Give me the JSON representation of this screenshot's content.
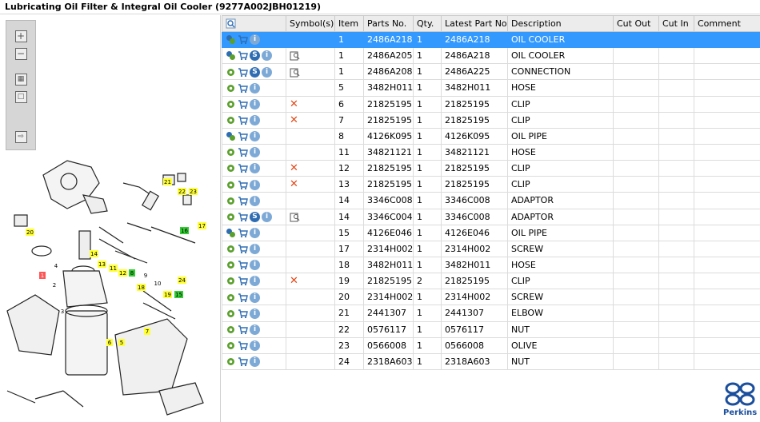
{
  "title": "Lubricating Oil Filter & Integral Oil Cooler (9277A002JBH01219)",
  "columns": [
    "Symbol(s)",
    "Item",
    "Parts No.",
    "Qty.",
    "Latest Part No.",
    "Description",
    "Cut Out",
    "Cut In",
    "Comment"
  ],
  "rows": [
    {
      "item": "1",
      "part": "2486A218",
      "qty": "1",
      "latest": "2486A218",
      "desc": "OIL COOLER",
      "selected": true,
      "s": false,
      "catalog": false,
      "cross": false,
      "multi": true
    },
    {
      "item": "1",
      "part": "2486A205",
      "qty": "1",
      "latest": "2486A218",
      "desc": "OIL COOLER",
      "s": true,
      "catalog": true,
      "cross": false,
      "multi": true
    },
    {
      "item": "1",
      "part": "2486A208",
      "qty": "1",
      "latest": "2486A225",
      "desc": "CONNECTION",
      "s": true,
      "catalog": true,
      "cross": false,
      "multi": false
    },
    {
      "item": "5",
      "part": "3482H011",
      "qty": "1",
      "latest": "3482H011",
      "desc": "HOSE",
      "s": false,
      "catalog": false,
      "cross": false,
      "multi": false
    },
    {
      "item": "6",
      "part": "21825195",
      "qty": "1",
      "latest": "21825195",
      "desc": "CLIP",
      "s": false,
      "catalog": false,
      "cross": true,
      "multi": false
    },
    {
      "item": "7",
      "part": "21825195",
      "qty": "1",
      "latest": "21825195",
      "desc": "CLIP",
      "s": false,
      "catalog": false,
      "cross": true,
      "multi": false
    },
    {
      "item": "8",
      "part": "4126K095",
      "qty": "1",
      "latest": "4126K095",
      "desc": "OIL PIPE",
      "s": false,
      "catalog": false,
      "cross": false,
      "multi": true
    },
    {
      "item": "11",
      "part": "34821121",
      "qty": "1",
      "latest": "34821121",
      "desc": "HOSE",
      "s": false,
      "catalog": false,
      "cross": false,
      "multi": false
    },
    {
      "item": "12",
      "part": "21825195",
      "qty": "1",
      "latest": "21825195",
      "desc": "CLIP",
      "s": false,
      "catalog": false,
      "cross": true,
      "multi": false
    },
    {
      "item": "13",
      "part": "21825195",
      "qty": "1",
      "latest": "21825195",
      "desc": "CLIP",
      "s": false,
      "catalog": false,
      "cross": true,
      "multi": false
    },
    {
      "item": "14",
      "part": "3346C008",
      "qty": "1",
      "latest": "3346C008",
      "desc": "ADAPTOR",
      "s": false,
      "catalog": false,
      "cross": false,
      "multi": false
    },
    {
      "item": "14",
      "part": "3346C004",
      "qty": "1",
      "latest": "3346C008",
      "desc": "ADAPTOR",
      "s": true,
      "catalog": true,
      "cross": false,
      "multi": false
    },
    {
      "item": "15",
      "part": "4126E046",
      "qty": "1",
      "latest": "4126E046",
      "desc": "OIL PIPE",
      "s": false,
      "catalog": false,
      "cross": false,
      "multi": true
    },
    {
      "item": "17",
      "part": "2314H002",
      "qty": "1",
      "latest": "2314H002",
      "desc": "SCREW",
      "s": false,
      "catalog": false,
      "cross": false,
      "multi": false
    },
    {
      "item": "18",
      "part": "3482H011",
      "qty": "1",
      "latest": "3482H011",
      "desc": "HOSE",
      "s": false,
      "catalog": false,
      "cross": false,
      "multi": false
    },
    {
      "item": "19",
      "part": "21825195",
      "qty": "2",
      "latest": "21825195",
      "desc": "CLIP",
      "s": false,
      "catalog": false,
      "cross": true,
      "multi": false
    },
    {
      "item": "20",
      "part": "2314H002",
      "qty": "1",
      "latest": "2314H002",
      "desc": "SCREW",
      "s": false,
      "catalog": false,
      "cross": false,
      "multi": false
    },
    {
      "item": "21",
      "part": "2441307",
      "qty": "1",
      "latest": "2441307",
      "desc": "ELBOW",
      "s": false,
      "catalog": false,
      "cross": false,
      "multi": false
    },
    {
      "item": "22",
      "part": "0576117",
      "qty": "1",
      "latest": "0576117",
      "desc": "NUT",
      "s": false,
      "catalog": false,
      "cross": false,
      "multi": false
    },
    {
      "item": "23",
      "part": "0566008",
      "qty": "1",
      "latest": "0566008",
      "desc": "OLIVE",
      "s": false,
      "catalog": false,
      "cross": false,
      "multi": false
    },
    {
      "item": "24",
      "part": "2318A603",
      "qty": "1",
      "latest": "2318A603",
      "desc": "NUT",
      "s": false,
      "catalog": false,
      "cross": false,
      "multi": false
    }
  ],
  "callouts": [
    "21",
    "22",
    "23",
    "20",
    "16",
    "17",
    "14",
    "13",
    "11",
    "12",
    "8",
    "9",
    "10",
    "24",
    "18",
    "19",
    "15",
    "7",
    "6",
    "5",
    "4",
    "3",
    "2",
    "1"
  ],
  "logo_text": "Perkins",
  "colors": {
    "selection": "#3399ff",
    "header": "#ececec",
    "callout_yellow": "#ffff33",
    "callout_green": "#33cc33",
    "cross": "#e04a1a",
    "brand": "#1b4f9c"
  }
}
